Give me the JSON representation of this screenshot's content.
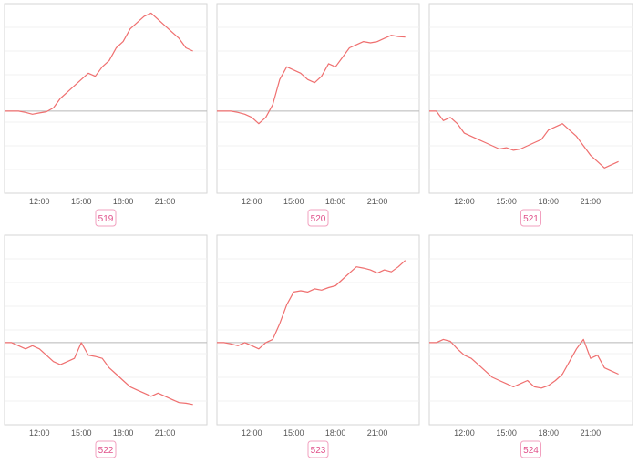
{
  "chart_data": [
    {
      "type": "line",
      "label": "519",
      "x_ticks": [
        "12:00",
        "15:00",
        "18:00",
        "21:00"
      ],
      "x": [
        9.5,
        10,
        10.5,
        11,
        11.5,
        12,
        12.5,
        13,
        13.5,
        14,
        14.5,
        15,
        15.5,
        16,
        16.5,
        17,
        17.5,
        18,
        18.5,
        19,
        19.5,
        20,
        20.5,
        21,
        21.5,
        22,
        22.5,
        23
      ],
      "values": [
        0,
        0,
        0,
        -0.02,
        -0.05,
        -0.03,
        -0.01,
        0.05,
        0.2,
        0.3,
        0.4,
        0.5,
        0.6,
        0.55,
        0.7,
        0.8,
        1.0,
        1.1,
        1.3,
        1.4,
        1.5,
        1.55,
        1.45,
        1.35,
        1.25,
        1.15,
        1.0,
        0.95
      ],
      "ylim": [
        -1.3,
        1.7
      ],
      "color": "#ef6f6f"
    },
    {
      "type": "line",
      "label": "520",
      "x_ticks": [
        "12:00",
        "15:00",
        "18:00",
        "21:00"
      ],
      "x": [
        9.5,
        10,
        10.5,
        11,
        11.5,
        12,
        12.5,
        13,
        13.5,
        14,
        14.5,
        15,
        15.5,
        16,
        16.5,
        17,
        17.5,
        18,
        18.5,
        19,
        19.5,
        20,
        20.5,
        21,
        21.5,
        22,
        22.5,
        23
      ],
      "values": [
        0,
        0,
        0,
        -0.02,
        -0.05,
        -0.1,
        -0.2,
        -0.1,
        0.1,
        0.5,
        0.7,
        0.65,
        0.6,
        0.5,
        0.45,
        0.55,
        0.75,
        0.7,
        0.85,
        1.0,
        1.05,
        1.1,
        1.08,
        1.1,
        1.15,
        1.2,
        1.18,
        1.17
      ],
      "ylim": [
        -1.3,
        1.7
      ],
      "color": "#ef6f6f"
    },
    {
      "type": "line",
      "label": "521",
      "x_ticks": [
        "12:00",
        "15:00",
        "18:00",
        "21:00"
      ],
      "x": [
        9.5,
        10,
        10.5,
        11,
        11.5,
        12,
        12.5,
        13,
        13.5,
        14,
        14.5,
        15,
        15.5,
        16,
        16.5,
        17,
        17.5,
        18,
        18.5,
        19,
        19.5,
        20,
        20.5,
        21,
        21.5,
        22,
        22.5,
        23
      ],
      "values": [
        0,
        0,
        -0.15,
        -0.1,
        -0.2,
        -0.35,
        -0.4,
        -0.45,
        -0.5,
        -0.55,
        -0.6,
        -0.58,
        -0.62,
        -0.6,
        -0.55,
        -0.5,
        -0.45,
        -0.3,
        -0.25,
        -0.2,
        -0.3,
        -0.4,
        -0.55,
        -0.7,
        -0.8,
        -0.9,
        -0.85,
        -0.8
      ],
      "ylim": [
        -1.3,
        1.7
      ],
      "color": "#ef6f6f"
    },
    {
      "type": "line",
      "label": "522",
      "x_ticks": [
        "12:00",
        "15:00",
        "18:00",
        "21:00"
      ],
      "x": [
        9.5,
        10,
        10.5,
        11,
        11.5,
        12,
        12.5,
        13,
        13.5,
        14,
        14.5,
        15,
        15.5,
        16,
        16.5,
        17,
        17.5,
        18,
        18.5,
        19,
        19.5,
        20,
        20.5,
        21,
        21.5,
        22,
        22.5,
        23
      ],
      "values": [
        0,
        0,
        -0.05,
        -0.1,
        -0.05,
        -0.1,
        -0.2,
        -0.3,
        -0.35,
        -0.3,
        -0.25,
        0.0,
        -0.2,
        -0.22,
        -0.25,
        -0.4,
        -0.5,
        -0.6,
        -0.7,
        -0.75,
        -0.8,
        -0.85,
        -0.8,
        -0.85,
        -0.9,
        -0.95,
        -0.96,
        -0.98
      ],
      "ylim": [
        -1.3,
        1.7
      ],
      "color": "#ef6f6f"
    },
    {
      "type": "line",
      "label": "523",
      "x_ticks": [
        "12:00",
        "15:00",
        "18:00",
        "21:00"
      ],
      "x": [
        9.5,
        10,
        10.5,
        11,
        11.5,
        12,
        12.5,
        13,
        13.5,
        14,
        14.5,
        15,
        15.5,
        16,
        16.5,
        17,
        17.5,
        18,
        18.5,
        19,
        19.5,
        20,
        20.5,
        21,
        21.5,
        22,
        22.5,
        23
      ],
      "values": [
        0,
        0,
        -0.02,
        -0.05,
        0.0,
        -0.05,
        -0.1,
        0.0,
        0.05,
        0.3,
        0.6,
        0.8,
        0.82,
        0.8,
        0.85,
        0.83,
        0.87,
        0.9,
        1.0,
        1.1,
        1.2,
        1.18,
        1.15,
        1.1,
        1.15,
        1.12,
        1.2,
        1.3
      ],
      "ylim": [
        -1.3,
        1.7
      ],
      "color": "#ef6f6f"
    },
    {
      "type": "line",
      "label": "524",
      "x_ticks": [
        "12:00",
        "15:00",
        "18:00",
        "21:00"
      ],
      "x": [
        9.5,
        10,
        10.5,
        11,
        11.5,
        12,
        12.5,
        13,
        13.5,
        14,
        14.5,
        15,
        15.5,
        16,
        16.5,
        17,
        17.5,
        18,
        18.5,
        19,
        19.5,
        20,
        20.5,
        21,
        21.5,
        22,
        22.5,
        23
      ],
      "values": [
        0,
        0,
        0.05,
        0.02,
        -0.1,
        -0.2,
        -0.25,
        -0.35,
        -0.45,
        -0.55,
        -0.6,
        -0.65,
        -0.7,
        -0.65,
        -0.6,
        -0.7,
        -0.72,
        -0.68,
        -0.6,
        -0.5,
        -0.3,
        -0.1,
        0.05,
        -0.25,
        -0.2,
        -0.4,
        -0.45,
        -0.5
      ],
      "ylim": [
        -1.3,
        1.7
      ],
      "color": "#ef6f6f"
    }
  ]
}
